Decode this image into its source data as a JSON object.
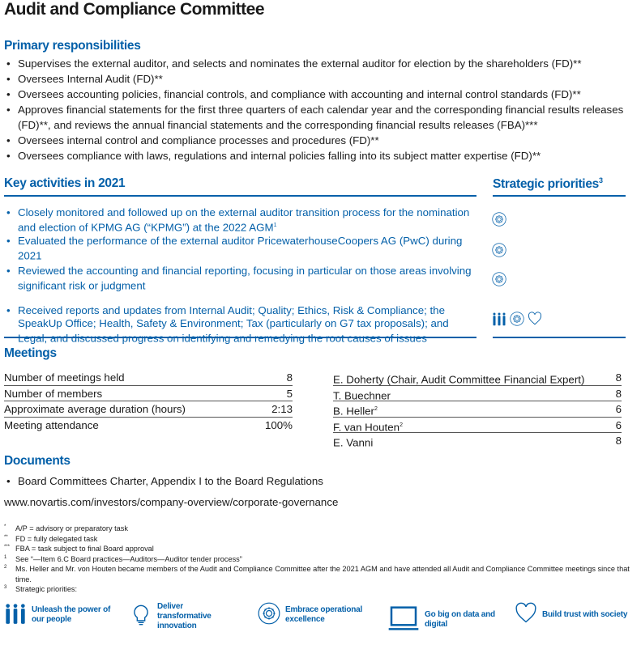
{
  "title": "Audit and Compliance Committee",
  "primary": {
    "heading": "Primary responsibilities",
    "items": [
      "Supervises the external auditor, and selects and nominates the external auditor for election by the shareholders (FD)**",
      "Oversees Internal Audit (FD)**",
      "Oversees accounting policies, financial controls, and compliance with accounting and internal control standards (FD)**",
      "Approves financial statements for the first three quarters of each calendar year and the corresponding financial results releases (FD)**, and reviews the annual financial statements and the corresponding financial results releases (FBA)***",
      "Oversees internal control and compliance processes and procedures (FD)**",
      "Oversees compliance with laws, regulations and internal policies falling into its subject matter expertise (FD)**"
    ]
  },
  "activities": {
    "heading": "Key activities in 2021",
    "priorities_heading": "Strategic priorities",
    "priorities_sup": "3",
    "items": [
      {
        "text": "Closely monitored and followed up on the external auditor transition process for the nomination and election of KPMG AG (“KPMG”) at the 2022 AGM",
        "sup": "1",
        "icons": [
          "gear-icon"
        ]
      },
      {
        "text": "Evaluated the performance of the external auditor PricewaterhouseCoopers AG (PwC) during 2021",
        "sup": "",
        "icons": [
          "gear-icon"
        ]
      },
      {
        "text": "Reviewed the accounting and financial reporting, focusing in particular on those areas involving significant risk or judgment",
        "sup": "",
        "icons": [
          "gear-icon"
        ]
      },
      {
        "text": "Received reports and updates from Internal Audit; Quality; Ethics, Risk & Compliance; the SpeakUp Office; Health, Safety & Environment; Tax (particularly on G7 tax proposals); and Legal, and discussed progress on identifying and remedying the root causes of issues",
        "sup": "",
        "icons": [
          "people-icon",
          "gear-icon",
          "heart-icon"
        ]
      }
    ]
  },
  "meetings": {
    "heading": "Meetings",
    "stats": [
      {
        "label": "Number of meetings held",
        "value": "8"
      },
      {
        "label": "Number of members",
        "value": "5"
      },
      {
        "label": "Approximate average duration (hours)",
        "value": "2:13"
      },
      {
        "label": "Meeting attendance",
        "value": "100%"
      }
    ],
    "members": [
      {
        "name": "E. Doherty (Chair, Audit Committee Financial Expert)",
        "sup": "",
        "value": "8"
      },
      {
        "name": "T. Buechner",
        "sup": "",
        "value": "8"
      },
      {
        "name": "B. Heller",
        "sup": "2",
        "value": "6"
      },
      {
        "name": "F. van Houten",
        "sup": "2",
        "value": "6"
      },
      {
        "name": "E. Vanni",
        "sup": "",
        "value": "8"
      }
    ]
  },
  "documents": {
    "heading": "Documents",
    "items": [
      "Board Committees Charter, Appendix I to the Board Regulations"
    ],
    "url": "www.novartis.com/investors/company-overview/corporate-governance"
  },
  "footnotes": [
    {
      "mark": "*",
      "text": "A/P = advisory or preparatory task"
    },
    {
      "mark": "**",
      "text": "FD = fully delegated task"
    },
    {
      "mark": "***",
      "text": "FBA = task subject to final Board approval"
    },
    {
      "mark": "1",
      "text": "See “—Item 6.C Board practices—Auditors—Auditor tender process”"
    },
    {
      "mark": "2",
      "text": "Ms. Heller and Mr. von Houten became members of the Audit and Compliance Committee after the 2021 AGM and have attended all Audit and Compliance Committee meetings since that time."
    },
    {
      "mark": "3",
      "text": "Strategic priorities:"
    }
  ],
  "priorities": [
    {
      "icon": "people-icon",
      "label": "Unleash the power of our people"
    },
    {
      "icon": "lightbulb-icon",
      "label": "Deliver transformative innovation"
    },
    {
      "icon": "gear-icon",
      "label": "Embrace operational excellence"
    },
    {
      "icon": "laptop-icon",
      "label": "Go big on data and digital"
    },
    {
      "icon": "heart-icon",
      "label": "Build trust with society"
    }
  ],
  "colors": {
    "accent": "#0460a9",
    "text": "#1a1a1a"
  }
}
